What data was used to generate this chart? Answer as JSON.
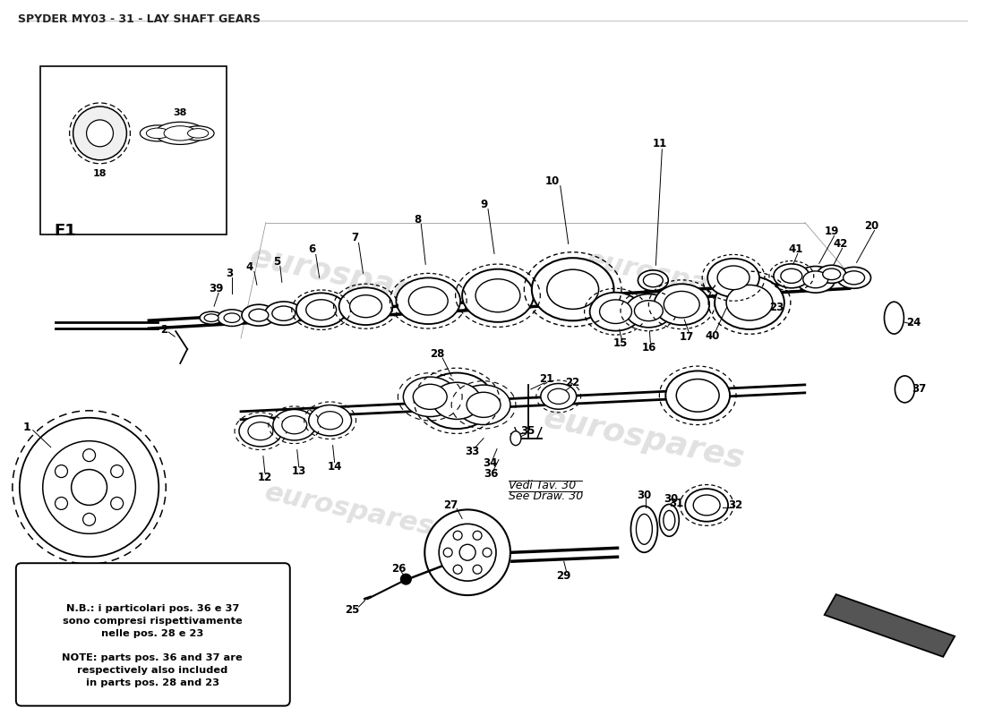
{
  "title": "SPYDER MY03 - 31 - LAY SHAFT GEARS",
  "title_fontsize": 9,
  "bg_color": "#ffffff",
  "text_color": "#000000",
  "note_italian": "N.B.: i particolari pos. 36 e 37\nsono compresi rispettivamente\nnelle pos. 28 e 23",
  "note_english": "NOTE: parts pos. 36 and 37 are\nrespectively also included\nin parts pos. 28 and 23",
  "vedi_line1": "Vedi Tav. 30",
  "vedi_line2": "See Draw. 30",
  "f1_label": "F1",
  "fig_width": 11.0,
  "fig_height": 8.0,
  "watermark": "eurospares"
}
